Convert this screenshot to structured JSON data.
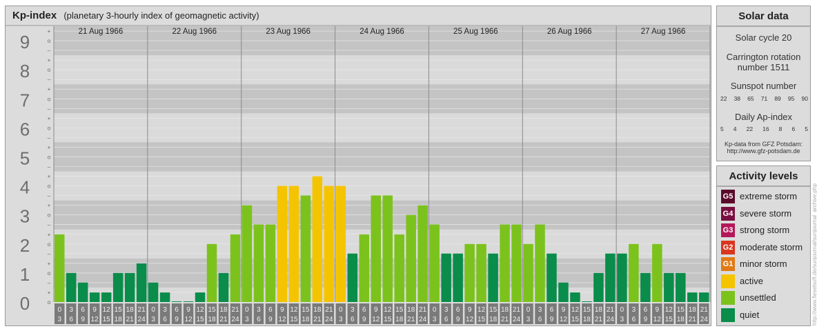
{
  "header": {
    "title": "Kp-index",
    "subtitle": "(planetary 3-hourly index of geomagnetic activity)"
  },
  "chart_data": {
    "type": "bar",
    "title": "Kp-index",
    "subtitle": "(planetary 3-hourly index of geomagnetic activity)",
    "ylim": [
      0,
      9
    ],
    "y_ticks": [
      "0",
      "1",
      "2",
      "3",
      "4",
      "5",
      "6",
      "7",
      "8",
      "9"
    ],
    "y_minor_labels": [
      "o",
      "+",
      "–"
    ],
    "days": [
      "21 Aug 1966",
      "22 Aug 1966",
      "23 Aug 1966",
      "24 Aug 1966",
      "25 Aug 1966",
      "26 Aug 1966",
      "27 Aug 1966"
    ],
    "interval_start": [
      "0",
      "3",
      "6",
      "9",
      "12",
      "15",
      "18",
      "21"
    ],
    "interval_end": [
      "3",
      "6",
      "9",
      "12",
      "15",
      "18",
      "21",
      "24"
    ],
    "values": [
      [
        2.33,
        1.0,
        0.67,
        0.33,
        0.33,
        1.0,
        1.0,
        1.33
      ],
      [
        0.67,
        0.33,
        0.0,
        0.0,
        0.33,
        2.0,
        1.0,
        2.33
      ],
      [
        3.33,
        2.67,
        2.67,
        4.0,
        4.0,
        3.67,
        4.33,
        4.0
      ],
      [
        4.0,
        1.67,
        2.33,
        3.67,
        3.67,
        2.33,
        3.0,
        3.33
      ],
      [
        2.67,
        1.67,
        1.67,
        2.0,
        2.0,
        1.67,
        2.67,
        2.67
      ],
      [
        2.0,
        2.67,
        1.67,
        0.67,
        0.33,
        0.0,
        1.0,
        1.67
      ],
      [
        1.67,
        2.0,
        1.0,
        2.0,
        1.0,
        1.0,
        0.33,
        0.33
      ]
    ],
    "colors": {
      "quiet": "#0a8c4b",
      "unsettled": "#7cc21d",
      "active": "#f5c400"
    },
    "grid": true
  },
  "solar": {
    "title": "Solar data",
    "cycle": "Solar cycle 20",
    "carrington_line1": "Carrington rotation",
    "carrington_line2": "number 1511",
    "sunspot_title": "Sunspot number",
    "sunspot": [
      "22",
      "38",
      "65",
      "71",
      "89",
      "95",
      "90"
    ],
    "ap_title": "Daily Ap-index",
    "ap": [
      "5",
      "4",
      "22",
      "16",
      "8",
      "6",
      "5"
    ],
    "source_line1": "Kp-data from GFZ Potsdam:",
    "source_line2": "http://www.gfz-potsdam.de"
  },
  "levels": {
    "title": "Activity levels",
    "items": [
      {
        "badge": "G5",
        "label": "extreme storm",
        "color": "#5a0a2a"
      },
      {
        "badge": "G4",
        "label": "severe storm",
        "color": "#7a0e40"
      },
      {
        "badge": "G3",
        "label": "strong storm",
        "color": "#b3195a"
      },
      {
        "badge": "G2",
        "label": "moderate storm",
        "color": "#d9361f"
      },
      {
        "badge": "G1",
        "label": "minor storm",
        "color": "#e07a16"
      },
      {
        "badge": "",
        "label": "active",
        "color": "#f5c400"
      },
      {
        "badge": "",
        "label": "unsettled",
        "color": "#7cc21d"
      },
      {
        "badge": "",
        "label": "quiet",
        "color": "#0a8c4b"
      }
    ]
  },
  "credit": "http://www.fieselsoft.de/sunjournal/sunjournal_archive.php"
}
